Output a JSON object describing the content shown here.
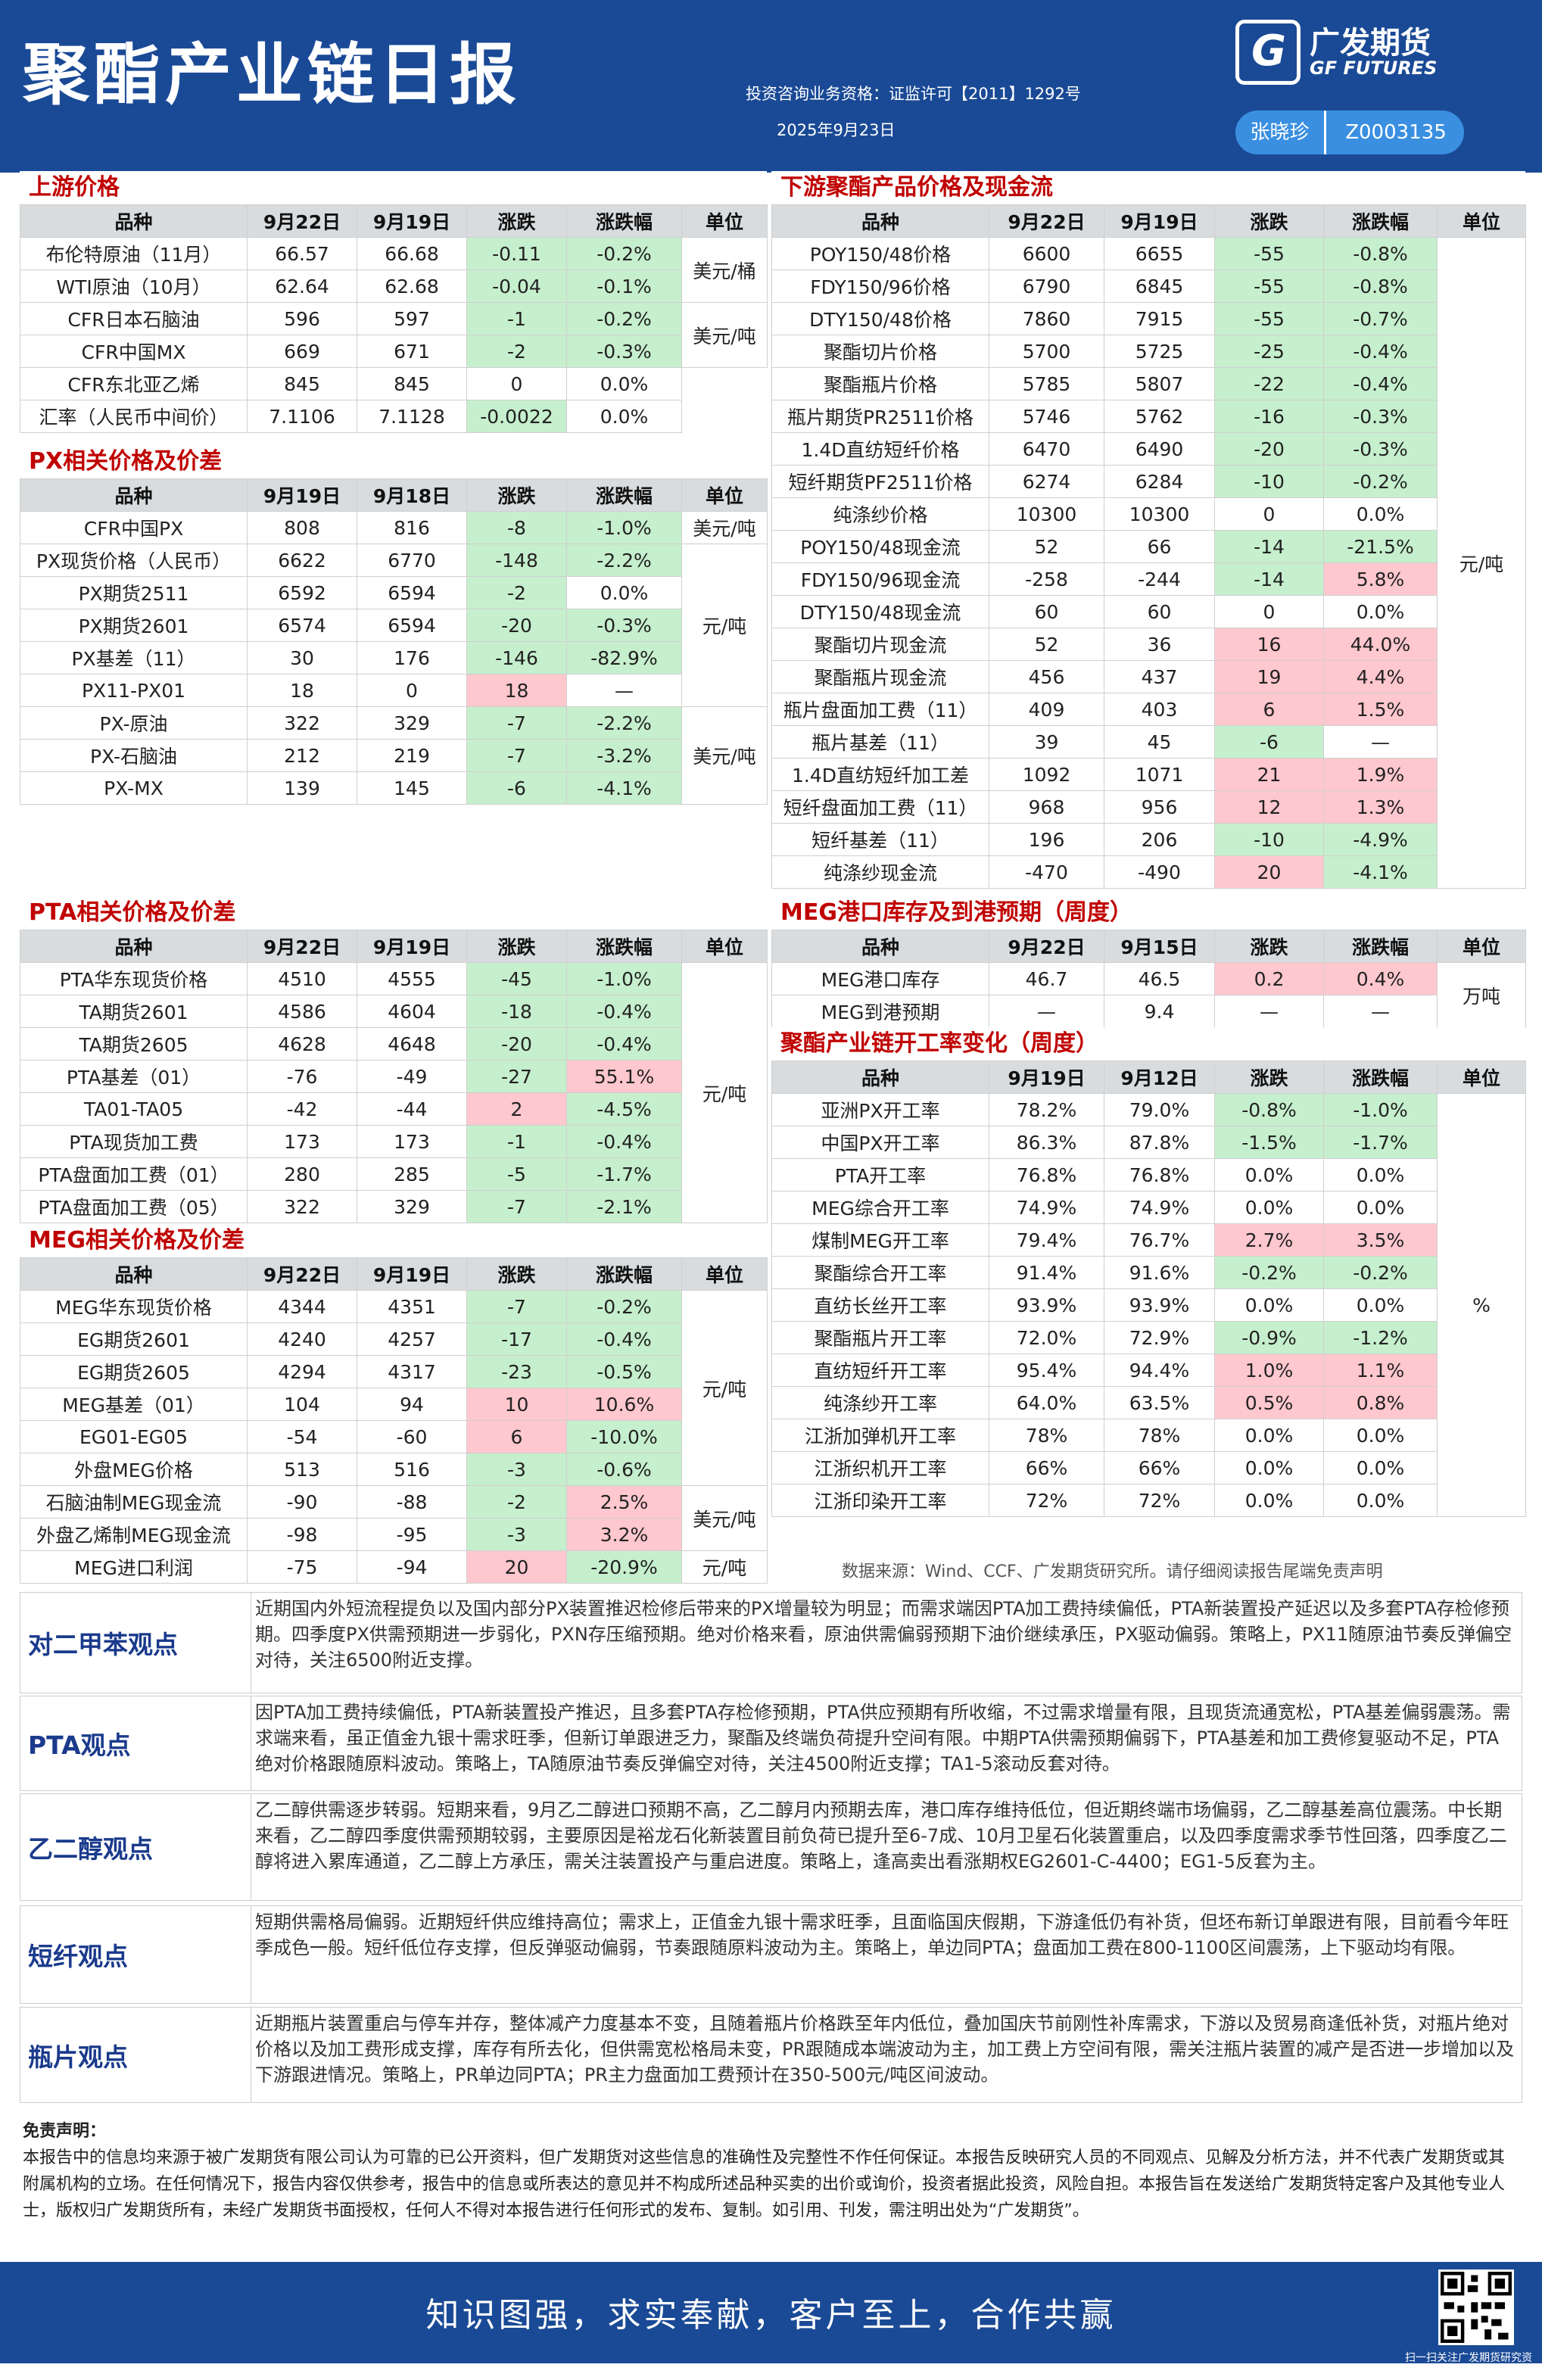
{
  "header": {
    "title": "聚酯产业链日报",
    "logo_cn": "广发期货",
    "logo_en": "GF FUTURES",
    "logo_mark": "G",
    "license": "投资咨询业务资格：证监许可【2011】1292号",
    "date": "2025年9月23日",
    "analyst_name": "张晓珍",
    "analyst_id": "Z0003135"
  },
  "colors": {
    "brand": "#1a4a96",
    "up": "#ffc7ce",
    "down": "#c6efcd",
    "section": "#c00000"
  },
  "upstream": {
    "title": "上游价格",
    "headers": [
      "品种",
      "9月22日",
      "9月19日",
      "涨跌",
      "涨跌幅",
      "单位"
    ],
    "rows": [
      [
        "布伦特原油（11月）",
        "66.57",
        "66.68",
        "-0.11",
        "-0.2%"
      ],
      [
        "WTI原油（10月）",
        "62.64",
        "62.68",
        "-0.04",
        "-0.1%"
      ],
      [
        "CFR日本石脑油",
        "596",
        "597",
        "-1",
        "-0.2%"
      ],
      [
        "CFR中国MX",
        "669",
        "671",
        "-2",
        "-0.3%"
      ],
      [
        "CFR东北亚乙烯",
        "845",
        "845",
        "0",
        "0.0%"
      ],
      [
        "汇率（人民币中间价）",
        "7.1106",
        "7.1128",
        "-0.0022",
        "0.0%"
      ]
    ],
    "units": [
      "美元/桶",
      "美元/吨"
    ]
  },
  "px": {
    "title": "PX相关价格及价差",
    "headers": [
      "品种",
      "9月19日",
      "9月18日",
      "涨跌",
      "涨跌幅",
      "单位"
    ],
    "rows": [
      [
        "CFR中国PX",
        "808",
        "816",
        "-8",
        "-1.0%"
      ],
      [
        "PX现货价格（人民币）",
        "6622",
        "6770",
        "-148",
        "-2.2%"
      ],
      [
        "PX期货2511",
        "6592",
        "6594",
        "-2",
        "0.0%"
      ],
      [
        "PX期货2601",
        "6574",
        "6594",
        "-20",
        "-0.3%"
      ],
      [
        "PX基差（11）",
        "30",
        "176",
        "-146",
        "-82.9%"
      ],
      [
        "PX11-PX01",
        "18",
        "0",
        "18",
        "—"
      ],
      [
        "PX-原油",
        "322",
        "329",
        "-7",
        "-2.2%"
      ],
      [
        "PX-石脑油",
        "212",
        "219",
        "-7",
        "-3.2%"
      ],
      [
        "PX-MX",
        "139",
        "145",
        "-6",
        "-4.1%"
      ]
    ],
    "units": [
      "美元/吨",
      "元/吨",
      "美元/吨"
    ]
  },
  "pta": {
    "title": "PTA相关价格及价差",
    "headers": [
      "品种",
      "9月22日",
      "9月19日",
      "涨跌",
      "涨跌幅",
      "单位"
    ],
    "rows": [
      [
        "PTA华东现货价格",
        "4510",
        "4555",
        "-45",
        "-1.0%"
      ],
      [
        "TA期货2601",
        "4586",
        "4604",
        "-18",
        "-0.4%"
      ],
      [
        "TA期货2605",
        "4628",
        "4648",
        "-20",
        "-0.4%"
      ],
      [
        "PTA基差（01）",
        "-76",
        "-49",
        "-27",
        "55.1%"
      ],
      [
        "TA01-TA05",
        "-42",
        "-44",
        "2",
        "-4.5%"
      ],
      [
        "PTA现货加工费",
        "173",
        "173",
        "-1",
        "-0.4%"
      ],
      [
        "PTA盘面加工费（01）",
        "280",
        "285",
        "-5",
        "-1.7%"
      ],
      [
        "PTA盘面加工费（05）",
        "322",
        "329",
        "-7",
        "-2.1%"
      ]
    ],
    "units": [
      "元/吨"
    ]
  },
  "meg": {
    "title": "MEG相关价格及价差",
    "headers": [
      "品种",
      "9月22日",
      "9月19日",
      "涨跌",
      "涨跌幅",
      "单位"
    ],
    "rows": [
      [
        "MEG华东现货价格",
        "4344",
        "4351",
        "-7",
        "-0.2%"
      ],
      [
        "EG期货2601",
        "4240",
        "4257",
        "-17",
        "-0.4%"
      ],
      [
        "EG期货2605",
        "4294",
        "4317",
        "-23",
        "-0.5%"
      ],
      [
        "MEG基差（01）",
        "104",
        "94",
        "10",
        "10.6%"
      ],
      [
        "EG01-EG05",
        "-54",
        "-60",
        "6",
        "-10.0%"
      ],
      [
        "外盘MEG价格",
        "513",
        "516",
        "-3",
        "-0.6%"
      ],
      [
        "石脑油制MEG现金流",
        "-90",
        "-88",
        "-2",
        "2.5%"
      ],
      [
        "外盘乙烯制MEG现金流",
        "-98",
        "-95",
        "-3",
        "3.2%"
      ],
      [
        "MEG进口利润",
        "-75",
        "-94",
        "20",
        "-20.9%"
      ]
    ],
    "units": [
      "元/吨",
      "美元/吨",
      "元/吨"
    ]
  },
  "downstream": {
    "title": "下游聚酯产品价格及现金流",
    "headers": [
      "品种",
      "9月22日",
      "9月19日",
      "涨跌",
      "涨跌幅",
      "单位"
    ],
    "rows": [
      [
        "POY150/48价格",
        "6600",
        "6655",
        "-55",
        "-0.8%"
      ],
      [
        "FDY150/96价格",
        "6790",
        "6845",
        "-55",
        "-0.8%"
      ],
      [
        "DTY150/48价格",
        "7860",
        "7915",
        "-55",
        "-0.7%"
      ],
      [
        "聚酯切片价格",
        "5700",
        "5725",
        "-25",
        "-0.4%"
      ],
      [
        "聚酯瓶片价格",
        "5785",
        "5807",
        "-22",
        "-0.4%"
      ],
      [
        "瓶片期货PR2511价格",
        "5746",
        "5762",
        "-16",
        "-0.3%"
      ],
      [
        "1.4D直纺短纤价格",
        "6470",
        "6490",
        "-20",
        "-0.3%"
      ],
      [
        "短纤期货PF2511价格",
        "6274",
        "6284",
        "-10",
        "-0.2%"
      ],
      [
        "纯涤纱价格",
        "10300",
        "10300",
        "0",
        "0.0%"
      ],
      [
        "POY150/48现金流",
        "52",
        "66",
        "-14",
        "-21.5%"
      ],
      [
        "FDY150/96现金流",
        "-258",
        "-244",
        "-14",
        "5.8%"
      ],
      [
        "DTY150/48现金流",
        "60",
        "60",
        "0",
        "0.0%"
      ],
      [
        "聚酯切片现金流",
        "52",
        "36",
        "16",
        "44.0%"
      ],
      [
        "聚酯瓶片现金流",
        "456",
        "437",
        "19",
        "4.4%"
      ],
      [
        "瓶片盘面加工费（11）",
        "409",
        "403",
        "6",
        "1.5%"
      ],
      [
        "瓶片基差（11）",
        "39",
        "45",
        "-6",
        "—"
      ],
      [
        "1.4D直纺短纤加工差",
        "1092",
        "1071",
        "21",
        "1.9%"
      ],
      [
        "短纤盘面加工费（11）",
        "968",
        "956",
        "12",
        "1.3%"
      ],
      [
        "短纤基差（11）",
        "196",
        "206",
        "-10",
        "-4.9%"
      ],
      [
        "纯涤纱现金流",
        "-470",
        "-490",
        "20",
        "-4.1%"
      ]
    ],
    "units": [
      "元/吨"
    ]
  },
  "inventory": {
    "title": "MEG港口库存及到港预期（周度）",
    "headers": [
      "品种",
      "9月22日",
      "9月15日",
      "涨跌",
      "涨跌幅",
      "单位"
    ],
    "rows": [
      [
        "MEG港口库存",
        "46.7",
        "46.5",
        "0.2",
        "0.4%"
      ],
      [
        "MEG到港预期",
        "—",
        "9.4",
        "—",
        "—"
      ]
    ],
    "units": [
      "万吨"
    ]
  },
  "operating": {
    "title": "聚酯产业链开工率变化（周度）",
    "headers": [
      "品种",
      "9月19日",
      "9月12日",
      "涨跌",
      "涨跌幅",
      "单位"
    ],
    "rows": [
      [
        "亚洲PX开工率",
        "78.2%",
        "79.0%",
        "-0.8%",
        "-1.0%"
      ],
      [
        "中国PX开工率",
        "86.3%",
        "87.8%",
        "-1.5%",
        "-1.7%"
      ],
      [
        "PTA开工率",
        "76.8%",
        "76.8%",
        "0.0%",
        "0.0%"
      ],
      [
        "MEG综合开工率",
        "74.9%",
        "74.9%",
        "0.0%",
        "0.0%"
      ],
      [
        "煤制MEG开工率",
        "79.4%",
        "76.7%",
        "2.7%",
        "3.5%"
      ],
      [
        "聚酯综合开工率",
        "91.4%",
        "91.6%",
        "-0.2%",
        "-0.2%"
      ],
      [
        "直纺长丝开工率",
        "93.9%",
        "93.9%",
        "0.0%",
        "0.0%"
      ],
      [
        "聚酯瓶片开工率",
        "72.0%",
        "72.9%",
        "-0.9%",
        "-1.2%"
      ],
      [
        "直纺短纤开工率",
        "95.4%",
        "94.4%",
        "1.0%",
        "1.1%"
      ],
      [
        "纯涤纱开工率",
        "64.0%",
        "63.5%",
        "0.5%",
        "0.8%"
      ],
      [
        "江浙加弹机开工率",
        "78%",
        "78%",
        "0.0%",
        "0.0%"
      ],
      [
        "江浙织机开工率",
        "66%",
        "66%",
        "0.0%",
        "0.0%"
      ],
      [
        "江浙印染开工率",
        "72%",
        "72%",
        "0.0%",
        "0.0%"
      ]
    ],
    "units": [
      "%"
    ]
  },
  "source": "数据来源：Wind、CCF、广发期货研究所。请仔细阅读报告尾端免责声明",
  "opinions": [
    {
      "label": "对二甲苯观点",
      "text": "近期国内外短流程提负以及国内部分PX装置推迟检修后带来的PX增量较为明显；而需求端因PTA加工费持续偏低，PTA新装置投产延迟以及多套PTA存检修预期。四季度PX供需预期进一步弱化，PXN存压缩预期。绝对价格来看，原油供需偏弱预期下油价继续承压，PX驱动偏弱。策略上，PX11随原油节奏反弹偏空对待，关注6500附近支撑。"
    },
    {
      "label": "PTA观点",
      "text": "因PTA加工费持续偏低，PTA新装置投产推迟，且多套PTA存检修预期，PTA供应预期有所收缩，不过需求增量有限，且现货流通宽松，PTA基差偏弱震荡。需求端来看，虽正值金九银十需求旺季，但新订单跟进乏力，聚酯及终端负荷提升空间有限。中期PTA供需预期偏弱下，PTA基差和加工费修复驱动不足，PTA绝对价格跟随原料波动。策略上，TA随原油节奏反弹偏空对待，关注4500附近支撑；TA1-5滚动反套对待。"
    },
    {
      "label": "乙二醇观点",
      "text": "乙二醇供需逐步转弱。短期来看，9月乙二醇进口预期不高，乙二醇月内预期去库，港口库存维持低位，但近期终端市场偏弱，乙二醇基差高位震荡。中长期来看，乙二醇四季度供需预期较弱，主要原因是裕龙石化新装置目前负荷已提升至6-7成、10月卫星石化装置重启，以及四季度需求季节性回落，四季度乙二醇将进入累库通道，乙二醇上方承压，需关注装置投产与重启进度。策略上，逢高卖出看涨期权EG2601-C-4400；EG1-5反套为主。"
    },
    {
      "label": "短纤观点",
      "text": "短期供需格局偏弱。近期短纤供应维持高位；需求上，正值金九银十需求旺季，且面临国庆假期，下游逢低仍有补货，但坯布新订单跟进有限，目前看今年旺季成色一般。短纤低位存支撑，但反弹驱动偏弱，节奏跟随原料波动为主。策略上，单边同PTA；盘面加工费在800-1100区间震荡，上下驱动均有限。"
    },
    {
      "label": "瓶片观点",
      "text": "近期瓶片装置重启与停车并存，整体减产力度基本不变，且随着瓶片价格跌至年内低位，叠加国庆节前刚性补库需求，下游以及贸易商逢低补货，对瓶片绝对价格以及加工费形成支撑，库存有所去化，但供需宽松格局未变，PR跟随成本端波动为主，加工费上方空间有限，需关注瓶片装置的减产是否进一步增加以及下游跟进情况。策略上，PR单边同PTA；PR主力盘面加工费预计在350-500元/吨区间波动。"
    }
  ],
  "disclaimer": {
    "title": "免责声明：",
    "text": "本报告中的信息均来源于被广发期货有限公司认为可靠的已公开资料，但广发期货对这些信息的准确性及完整性不作任何保证。本报告反映研究人员的不同观点、见解及分析方法，并不代表广发期货或其附属机构的立场。在任何情况下，报告内容仅供参考，报告中的信息或所表达的意见并不构成所述品种买卖的出价或询价，投资者据此投资，风险自担。本报告旨在发送给广发期货特定客户及其他专业人士，版权归广发期货所有，未经广发期货书面授权，任何人不得对本报告进行任何形式的发布、复制。如引用、刊发，需注明出处为“广发期货”。"
  },
  "footer": {
    "slogan": "知识图强，求实奉献，客户至上，合作共赢",
    "qr_caption": "扫一扫关注广发期货研究资讯"
  }
}
